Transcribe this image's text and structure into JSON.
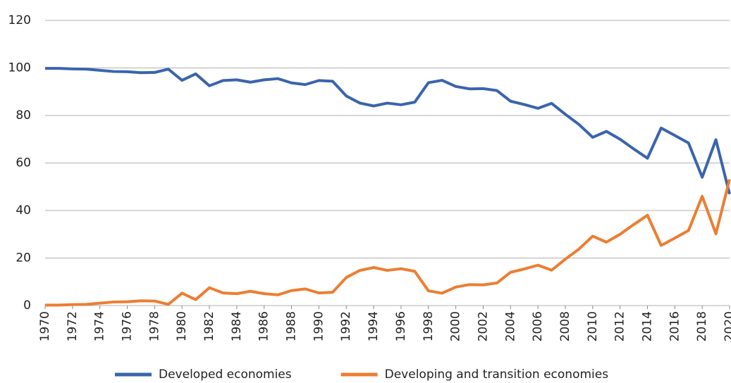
{
  "chart_data": {
    "type": "line",
    "x": [
      1970,
      1971,
      1972,
      1973,
      1974,
      1975,
      1976,
      1977,
      1978,
      1979,
      1980,
      1981,
      1982,
      1983,
      1984,
      1985,
      1986,
      1987,
      1988,
      1989,
      1990,
      1991,
      1992,
      1993,
      1994,
      1995,
      1996,
      1997,
      1998,
      1999,
      2000,
      2001,
      2002,
      2003,
      2004,
      2005,
      2006,
      2007,
      2008,
      2009,
      2010,
      2011,
      2012,
      2013,
      2014,
      2015,
      2016,
      2017,
      2018,
      2019,
      2020
    ],
    "series": [
      {
        "name": "Developed economies",
        "color": "#3a64ad",
        "values": [
          99.8,
          99.8,
          99.6,
          99.5,
          99.0,
          98.5,
          98.4,
          98.0,
          98.1,
          99.5,
          94.8,
          97.5,
          92.5,
          94.7,
          95.0,
          94.0,
          95.0,
          95.5,
          93.7,
          93.0,
          94.7,
          94.4,
          88.2,
          85.2,
          84.0,
          85.2,
          84.5,
          85.6,
          93.8,
          94.8,
          92.2,
          91.2,
          91.3,
          90.5,
          86.0,
          84.6,
          83.0,
          85.1,
          80.5,
          76.2,
          70.8,
          73.3,
          70.0,
          65.9,
          62.0,
          74.7,
          71.6,
          68.4,
          54.0,
          69.8,
          46.9
        ]
      },
      {
        "name": "Developing and transition economies",
        "color": "#ed7d31",
        "values": [
          0.2,
          0.2,
          0.4,
          0.5,
          1.0,
          1.5,
          1.6,
          2.0,
          1.9,
          0.5,
          5.2,
          2.5,
          7.5,
          5.3,
          5.0,
          6.0,
          5.0,
          4.5,
          6.3,
          7.0,
          5.3,
          5.6,
          11.8,
          14.8,
          16.0,
          14.8,
          15.5,
          14.4,
          6.2,
          5.2,
          7.8,
          8.8,
          8.7,
          9.5,
          14.0,
          15.4,
          17.0,
          14.9,
          19.5,
          23.8,
          29.2,
          26.7,
          30.0,
          34.1,
          38.0,
          25.3,
          28.4,
          31.6,
          46.0,
          30.2,
          53.1
        ]
      }
    ],
    "xlim": [
      1970,
      2020
    ],
    "xticks": [
      1970,
      1972,
      1974,
      1976,
      1978,
      1980,
      1982,
      1984,
      1986,
      1988,
      1990,
      1992,
      1994,
      1996,
      1998,
      2000,
      2002,
      2004,
      2006,
      2008,
      2010,
      2012,
      2014,
      2016,
      2018,
      2020
    ],
    "ylim": [
      0,
      120
    ],
    "yticks": [
      0,
      20,
      40,
      60,
      80,
      100,
      120
    ],
    "grid": true,
    "legend": "bottom"
  }
}
